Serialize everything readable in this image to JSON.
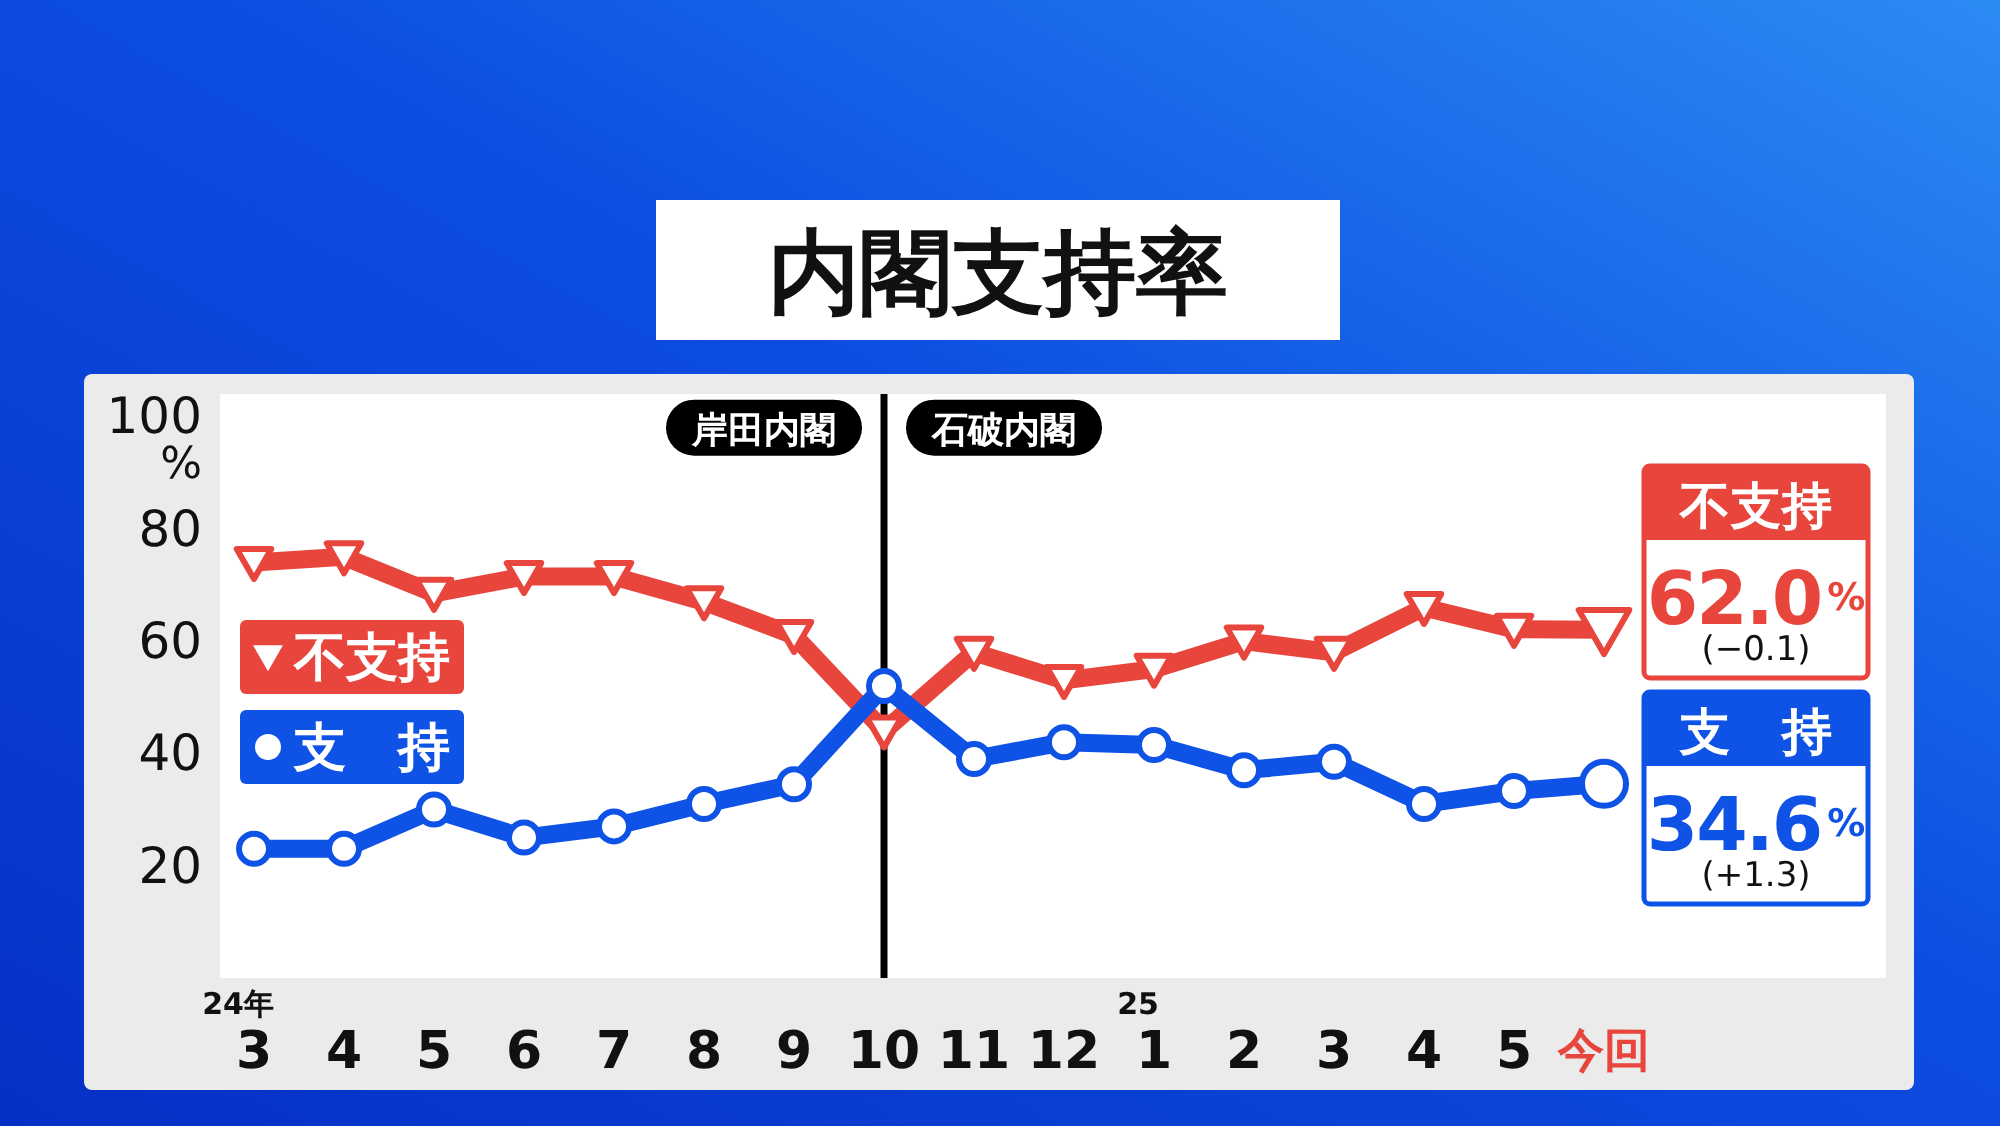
{
  "chart_data": {
    "type": "line",
    "title": "内閣支持率",
    "ylabel": "%",
    "categories": [
      "24年\n3",
      "4",
      "5",
      "6",
      "7",
      "8",
      "9",
      "10",
      "11",
      "12",
      "25\n1",
      "2",
      "3",
      "4",
      "5",
      "今回"
    ],
    "series": [
      {
        "name": "不支持",
        "color": "#e8453c",
        "marker": "triangle",
        "values": [
          74,
          75,
          68.5,
          71.5,
          71.5,
          67,
          61,
          44,
          58,
          53,
          55,
          60,
          58,
          66,
          62.1,
          62.0
        ],
        "value_labels": [
          null,
          null,
          null,
          null,
          null,
          null,
          null,
          null,
          null,
          null,
          null,
          null,
          null,
          null,
          null,
          "62.0%"
        ]
      },
      {
        "name": "支持",
        "color": "#0f52e6",
        "marker": "circle",
        "values": [
          23,
          23,
          30,
          25,
          27,
          31,
          34.5,
          52,
          39,
          42,
          41.5,
          37,
          38.5,
          31,
          33.3,
          34.6
        ],
        "value_labels": [
          null,
          null,
          null,
          null,
          null,
          null,
          null,
          null,
          null,
          null,
          null,
          null,
          null,
          null,
          null,
          "34.6%"
        ]
      }
    ],
    "ylim": [
      0,
      104
    ],
    "yticks": [
      20,
      40,
      60,
      80,
      100
    ],
    "legend": "left",
    "line_style": "solid",
    "ref_lines": [
      {
        "axis": "x",
        "value": "10",
        "color": "#000000"
      }
    ],
    "annotations": [
      {
        "text": "岸田内閣",
        "x": "10",
        "y": 98
      },
      {
        "text": "石破内閣",
        "x": "10",
        "y": 98
      },
      "(−0.1)",
      "(+1.3)"
    ]
  }
}
